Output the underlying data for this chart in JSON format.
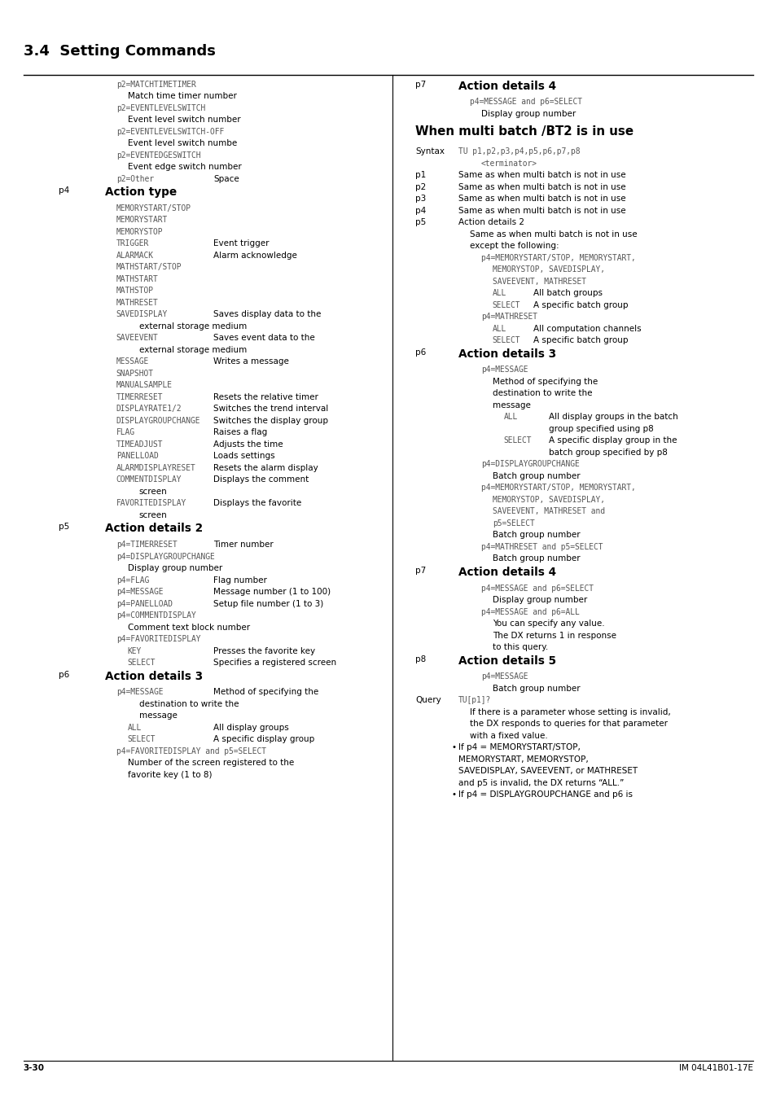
{
  "title": "3.4  Setting Commands",
  "footer_left": "3-30",
  "footer_right": "IM 04L41B01-17E",
  "background": "#ffffff",
  "text_color": "#000000",
  "mono_color": "#555555",
  "left_content": [
    {
      "type": "mono",
      "indent": 1,
      "text": "p2=MATCHTIMETIMER"
    },
    {
      "type": "normal",
      "indent": 2,
      "text": "Match time timer number"
    },
    {
      "type": "mono",
      "indent": 1,
      "text": "p2=EVENTLEVELSWITCH"
    },
    {
      "type": "normal",
      "indent": 2,
      "text": "Event level switch number"
    },
    {
      "type": "mono",
      "indent": 1,
      "text": "p2=EVENTLEVELSWITCH-OFF"
    },
    {
      "type": "normal",
      "indent": 2,
      "text": "Event level switch numbe"
    },
    {
      "type": "mono",
      "indent": 1,
      "text": "p2=EVENTEDGESWITCH"
    },
    {
      "type": "normal",
      "indent": 2,
      "text": "Event edge switch number"
    },
    {
      "type": "two_col",
      "indent": 1,
      "col1": "p2=Other",
      "col2": "Space",
      "col1_mono": true
    },
    {
      "type": "label_heading",
      "label": "p4",
      "heading": "Action type"
    },
    {
      "type": "mono",
      "indent": 1,
      "text": "MEMORYSTART/STOP"
    },
    {
      "type": "mono",
      "indent": 1,
      "text": "MEMORYSTART"
    },
    {
      "type": "mono",
      "indent": 1,
      "text": "MEMORYSTOP"
    },
    {
      "type": "two_col",
      "indent": 1,
      "col1": "TRIGGER",
      "col2": "Event trigger",
      "col1_mono": true
    },
    {
      "type": "two_col",
      "indent": 1,
      "col1": "ALARMACK",
      "col2": "Alarm acknowledge",
      "col1_mono": true
    },
    {
      "type": "mono",
      "indent": 1,
      "text": "MATHSTART/STOP"
    },
    {
      "type": "mono",
      "indent": 1,
      "text": "MATHSTART"
    },
    {
      "type": "mono",
      "indent": 1,
      "text": "MATHSTOP"
    },
    {
      "type": "mono",
      "indent": 1,
      "text": "MATHRESET"
    },
    {
      "type": "two_col",
      "indent": 1,
      "col1": "SAVEDISPLAY",
      "col2": "Saves display data to the",
      "col1_mono": true
    },
    {
      "type": "normal",
      "indent": 3,
      "text": "external storage medium"
    },
    {
      "type": "two_col",
      "indent": 1,
      "col1": "SAVEEVENT",
      "col2": "Saves event data to the",
      "col1_mono": true
    },
    {
      "type": "normal",
      "indent": 3,
      "text": "external storage medium"
    },
    {
      "type": "two_col",
      "indent": 1,
      "col1": "MESSAGE",
      "col2": "Writes a message",
      "col1_mono": true
    },
    {
      "type": "mono",
      "indent": 1,
      "text": "SNAPSHOT"
    },
    {
      "type": "mono",
      "indent": 1,
      "text": "MANUALSAMPLE"
    },
    {
      "type": "two_col",
      "indent": 1,
      "col1": "TIMERRESET",
      "col2": "Resets the relative timer",
      "col1_mono": true
    },
    {
      "type": "two_col",
      "indent": 1,
      "col1": "DISPLAYRATE1/2",
      "col2": "Switches the trend interval",
      "col1_mono": true
    },
    {
      "type": "two_col",
      "indent": 1,
      "col1": "DISPLAYGROUPCHANGE",
      "col2": "Switches the display group",
      "col1_mono": true
    },
    {
      "type": "two_col",
      "indent": 1,
      "col1": "FLAG",
      "col2": "Raises a flag",
      "col1_mono": true
    },
    {
      "type": "two_col",
      "indent": 1,
      "col1": "TIMEADJUST",
      "col2": "Adjusts the time",
      "col1_mono": true
    },
    {
      "type": "two_col",
      "indent": 1,
      "col1": "PANELLOAD",
      "col2": "Loads settings",
      "col1_mono": true
    },
    {
      "type": "two_col",
      "indent": 1,
      "col1": "ALARMDISPLAYRESET",
      "col2": "Resets the alarm display",
      "col1_mono": true
    },
    {
      "type": "two_col",
      "indent": 1,
      "col1": "COMMENTDISPLAY",
      "col2": "Displays the comment",
      "col1_mono": true
    },
    {
      "type": "normal",
      "indent": 3,
      "text": "screen"
    },
    {
      "type": "two_col",
      "indent": 1,
      "col1": "FAVORITEDISPLAY",
      "col2": "Displays the favorite",
      "col1_mono": true
    },
    {
      "type": "normal",
      "indent": 3,
      "text": "screen"
    },
    {
      "type": "label_heading",
      "label": "p5",
      "heading": "Action details 2"
    },
    {
      "type": "two_col",
      "indent": 1,
      "col1": "p4=TIMERRESET",
      "col2": "Timer number",
      "col1_mono": true
    },
    {
      "type": "mono",
      "indent": 1,
      "text": "p4=DISPLAYGROUPCHANGE"
    },
    {
      "type": "normal",
      "indent": 2,
      "text": "Display group number"
    },
    {
      "type": "two_col",
      "indent": 1,
      "col1": "p4=FLAG",
      "col2": "Flag number",
      "col1_mono": true
    },
    {
      "type": "two_col",
      "indent": 1,
      "col1": "p4=MESSAGE",
      "col2": "Message number (1 to 100)",
      "col1_mono": true
    },
    {
      "type": "two_col",
      "indent": 1,
      "col1": "p4=PANELLOAD",
      "col2": "Setup file number (1 to 3)",
      "col1_mono": true
    },
    {
      "type": "mono",
      "indent": 1,
      "text": "p4=COMMENTDISPLAY"
    },
    {
      "type": "normal",
      "indent": 2,
      "text": "Comment text block number"
    },
    {
      "type": "mono",
      "indent": 1,
      "text": "p4=FAVORITEDISPLAY"
    },
    {
      "type": "two_col",
      "indent": 2,
      "col1": "KEY",
      "col2": "Presses the favorite key",
      "col1_mono": true
    },
    {
      "type": "two_col",
      "indent": 2,
      "col1": "SELECT",
      "col2": "Specifies a registered screen",
      "col1_mono": true
    },
    {
      "type": "label_heading",
      "label": "p6",
      "heading": "Action details 3"
    },
    {
      "type": "two_col",
      "indent": 1,
      "col1": "p4=MESSAGE",
      "col2": "Method of specifying the",
      "col1_mono": true
    },
    {
      "type": "normal",
      "indent": 3,
      "text": "destination to write the"
    },
    {
      "type": "normal",
      "indent": 3,
      "text": "message"
    },
    {
      "type": "two_col",
      "indent": 2,
      "col1": "ALL",
      "col2": "All display groups",
      "col1_mono": true
    },
    {
      "type": "two_col",
      "indent": 2,
      "col1": "SELECT",
      "col2": "A specific display group",
      "col1_mono": true
    },
    {
      "type": "mono",
      "indent": 1,
      "text": "p4=FAVORITEDISPLAY and p5=SELECT"
    },
    {
      "type": "normal",
      "indent": 2,
      "text": "Number of the screen registered to the"
    },
    {
      "type": "normal",
      "indent": 2,
      "text": "favorite key (1 to 8)"
    }
  ],
  "right_content": [
    {
      "type": "label_heading",
      "label": "p7",
      "heading": "Action details 4"
    },
    {
      "type": "mono",
      "indent": 1,
      "text": "p4=MESSAGE and p6=SELECT"
    },
    {
      "type": "normal",
      "indent": 2,
      "text": "Display group number"
    },
    {
      "type": "section_heading",
      "text": "When multi batch /BT2 is in use"
    },
    {
      "type": "label_mono",
      "label": "Syntax",
      "text": "TU p1,p2,p3,p4,p5,p6,p7,p8"
    },
    {
      "type": "mono",
      "indent": 2,
      "text": "<terminator>"
    },
    {
      "type": "label_normal",
      "label": "p1",
      "text": "Same as when multi batch is not in use"
    },
    {
      "type": "label_normal",
      "label": "p2",
      "text": "Same as when multi batch is not in use"
    },
    {
      "type": "label_normal",
      "label": "p3",
      "text": "Same as when multi batch is not in use"
    },
    {
      "type": "label_normal",
      "label": "p4",
      "text": "Same as when multi batch is not in use"
    },
    {
      "type": "label_normal",
      "label": "p5",
      "text": "Action details 2"
    },
    {
      "type": "normal",
      "indent": 1,
      "text": "Same as when multi batch is not in use"
    },
    {
      "type": "normal",
      "indent": 1,
      "text": "except the following:"
    },
    {
      "type": "mono",
      "indent": 2,
      "text": "p4=MEMORYSTART/STOP, MEMORYSTART,"
    },
    {
      "type": "mono",
      "indent": 3,
      "text": "MEMORYSTOP, SAVEDISPLAY,"
    },
    {
      "type": "mono",
      "indent": 3,
      "text": "SAVEEVENT, MATHRESET"
    },
    {
      "type": "two_col_r",
      "col1": "ALL",
      "col2": "All batch groups"
    },
    {
      "type": "two_col_r",
      "col1": "SELECT",
      "col2": "A specific batch group"
    },
    {
      "type": "mono",
      "indent": 2,
      "text": "p4=MATHRESET"
    },
    {
      "type": "two_col_r",
      "col1": "ALL",
      "col2": "All computation channels"
    },
    {
      "type": "two_col_r",
      "col1": "SELECT",
      "col2": "A specific batch group"
    },
    {
      "type": "label_heading",
      "label": "p6",
      "heading": "Action details 3"
    },
    {
      "type": "mono",
      "indent": 2,
      "text": "p4=MESSAGE"
    },
    {
      "type": "normal",
      "indent": 3,
      "text": "Method of specifying the"
    },
    {
      "type": "normal",
      "indent": 3,
      "text": "destination to write the"
    },
    {
      "type": "normal",
      "indent": 3,
      "text": "message"
    },
    {
      "type": "two_col_r2",
      "col1": "ALL",
      "col2": "All display groups in the batch"
    },
    {
      "type": "normal_r2",
      "text": "group specified using p8"
    },
    {
      "type": "two_col_r2",
      "col1": "SELECT",
      "col2": "A specific display group in the"
    },
    {
      "type": "normal_r2",
      "text": "batch group specified by p8"
    },
    {
      "type": "mono",
      "indent": 2,
      "text": "p4=DISPLAYGROUPCHANGE"
    },
    {
      "type": "normal",
      "indent": 3,
      "text": "Batch group number"
    },
    {
      "type": "mono",
      "indent": 2,
      "text": "p4=MEMORYSTART/STOP, MEMORYSTART,"
    },
    {
      "type": "mono",
      "indent": 3,
      "text": "MEMORYSTOP, SAVEDISPLAY,"
    },
    {
      "type": "mono",
      "indent": 3,
      "text": "SAVEEVENT, MATHRESET and"
    },
    {
      "type": "mono",
      "indent": 3,
      "text": "p5=SELECT"
    },
    {
      "type": "normal",
      "indent": 3,
      "text": "Batch group number"
    },
    {
      "type": "mono",
      "indent": 2,
      "text": "p4=MATHRESET and p5=SELECT"
    },
    {
      "type": "normal",
      "indent": 3,
      "text": "Batch group number"
    },
    {
      "type": "label_heading",
      "label": "p7",
      "heading": "Action details 4"
    },
    {
      "type": "mono",
      "indent": 2,
      "text": "p4=MESSAGE and p6=SELECT"
    },
    {
      "type": "normal",
      "indent": 3,
      "text": "Display group number"
    },
    {
      "type": "mono",
      "indent": 2,
      "text": "p4=MESSAGE and p6=ALL"
    },
    {
      "type": "normal",
      "indent": 3,
      "text": "You can specify any value."
    },
    {
      "type": "normal",
      "indent": 3,
      "text": "The DX returns 1 in response"
    },
    {
      "type": "normal",
      "indent": 3,
      "text": "to this query."
    },
    {
      "type": "label_heading",
      "label": "p8",
      "heading": "Action details 5"
    },
    {
      "type": "mono",
      "indent": 2,
      "text": "p4=MESSAGE"
    },
    {
      "type": "normal",
      "indent": 3,
      "text": "Batch group number"
    },
    {
      "type": "label_mono",
      "label": "Query",
      "text": "TU[p1]?"
    },
    {
      "type": "normal",
      "indent": 1,
      "text": "If there is a parameter whose setting is invalid,"
    },
    {
      "type": "normal",
      "indent": 1,
      "text": "the DX responds to queries for that parameter"
    },
    {
      "type": "normal",
      "indent": 1,
      "text": "with a fixed value."
    },
    {
      "type": "bullet",
      "text": "If p4 = MEMORYSTART/STOP,"
    },
    {
      "type": "bullet_cont",
      "text": "MEMORYSTART, MEMORYSTOP,"
    },
    {
      "type": "bullet_cont",
      "text": "SAVEDISPLAY, SAVEEVENT, or MATHRESET"
    },
    {
      "type": "bullet_cont",
      "text": "and p5 is invalid, the DX returns “ALL.”"
    },
    {
      "type": "bullet",
      "text": "If p4 = DISPLAYGROUPCHANGE and p6 is"
    }
  ]
}
